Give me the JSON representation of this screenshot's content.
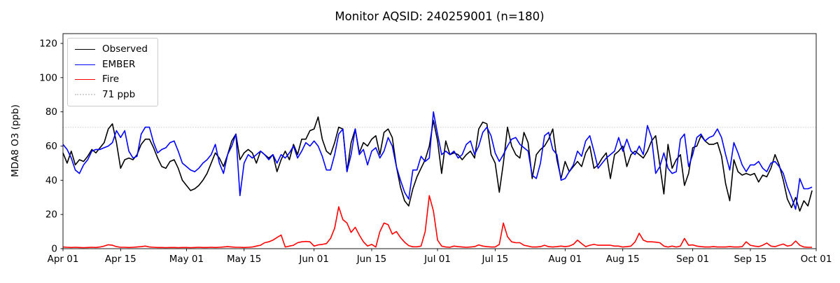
{
  "figure": {
    "title": "Monitor AQSID: 240259001 (n=180)"
  },
  "chart_data": {
    "type": "line",
    "title": "Monitor AQSID: 240259001 (n=180)",
    "xlabel": "",
    "ylabel": "MDA8 O3 (ppb)",
    "x_unit": "days since Apr 01",
    "xlim": [
      0,
      183
    ],
    "ylim": [
      0,
      125.5
    ],
    "grid": false,
    "x_tick_positions": [
      0,
      14,
      30,
      44,
      61,
      75,
      91,
      105,
      122,
      136,
      153,
      167,
      183
    ],
    "x_tick_labels": [
      "Apr 01",
      "Apr 15",
      "May 01",
      "May 15",
      "Jun 01",
      "Jun 15",
      "Jul 01",
      "Jul 15",
      "Aug 01",
      "Aug 15",
      "Sep 01",
      "Sep 15",
      "Oct 01"
    ],
    "y_ticks": [
      0,
      20,
      40,
      60,
      80,
      100,
      120
    ],
    "reference_line": {
      "value": 71,
      "label": "71 ppb",
      "color": "#d3d3d3",
      "style": "dotted"
    },
    "legend": {
      "position": "upper-left",
      "items": [
        {
          "label": "Observed",
          "color": "#000000",
          "style": "solid"
        },
        {
          "label": "EMBER",
          "color": "#0000ff",
          "style": "solid"
        },
        {
          "label": "Fire",
          "color": "#ff0000",
          "style": "solid"
        },
        {
          "label": "71 ppb",
          "color": "#d3d3d3",
          "style": "dotted"
        }
      ]
    },
    "series": [
      {
        "name": "Observed",
        "color": "#000000",
        "values": [
          56,
          50,
          57,
          49,
          52,
          51,
          54,
          58,
          56,
          59,
          62,
          70,
          73,
          62,
          47,
          52,
          53,
          52,
          55,
          61,
          64,
          64,
          59,
          53,
          48,
          47,
          51,
          52,
          47,
          40,
          37,
          34,
          35,
          37,
          40,
          44,
          50,
          56,
          53,
          48,
          55,
          63,
          67,
          52,
          56,
          58,
          56,
          50,
          57,
          55,
          53,
          55,
          45,
          52,
          57,
          52,
          61,
          55,
          64,
          64,
          69,
          70,
          77,
          64,
          57,
          55,
          62,
          71,
          70,
          45,
          62,
          70,
          56,
          62,
          60,
          64,
          66,
          55,
          68,
          70,
          65,
          48,
          36,
          28,
          25,
          35,
          42,
          47,
          52,
          60,
          75,
          63,
          44,
          63,
          55,
          56,
          55,
          52,
          55,
          57,
          53,
          70,
          74,
          73,
          55,
          50,
          33,
          50,
          71,
          60,
          55,
          53,
          68,
          62,
          41,
          55,
          58,
          60,
          64,
          70,
          52,
          41,
          51,
          45,
          48,
          51,
          48,
          56,
          60,
          47,
          49,
          53,
          56,
          41,
          55,
          57,
          60,
          48,
          55,
          57,
          55,
          53,
          57,
          63,
          66,
          49,
          32,
          61,
          47,
          52,
          55,
          37,
          44,
          59,
          60,
          66,
          63,
          61,
          61,
          62,
          54,
          38,
          28,
          52,
          45,
          43,
          44,
          43,
          44,
          39,
          43,
          42,
          47,
          55,
          49,
          40,
          29,
          24,
          30,
          22,
          28,
          25,
          34
        ]
      },
      {
        "name": "EMBER",
        "color": "#0000ff",
        "values": [
          61,
          58,
          53,
          46,
          44,
          49,
          52,
          57,
          58,
          58,
          59,
          60,
          62,
          69,
          65,
          69,
          57,
          53,
          54,
          67,
          71,
          71,
          62,
          56,
          58,
          59,
          62,
          63,
          57,
          50,
          48,
          46,
          45,
          47,
          50,
          52,
          55,
          61,
          50,
          44,
          55,
          60,
          67,
          31,
          50,
          55,
          53,
          55,
          57,
          55,
          52,
          55,
          50,
          55,
          53,
          56,
          60,
          53,
          57,
          62,
          60,
          63,
          60,
          54,
          46,
          46,
          55,
          67,
          70,
          45,
          55,
          70,
          55,
          58,
          49,
          57,
          59,
          53,
          57,
          65,
          60,
          48,
          40,
          33,
          29,
          46,
          46,
          54,
          51,
          53,
          80,
          67,
          55,
          57,
          55,
          57,
          53,
          55,
          61,
          63,
          55,
          60,
          68,
          71,
          66,
          56,
          51,
          55,
          60,
          64,
          65,
          61,
          59,
          57,
          43,
          41,
          50,
          66,
          68,
          58,
          55,
          40,
          41,
          45,
          49,
          57,
          54,
          63,
          66,
          57,
          47,
          50,
          53,
          55,
          57,
          65,
          57,
          64,
          57,
          55,
          60,
          55,
          72,
          65,
          44,
          48,
          56,
          47,
          44,
          45,
          64,
          67,
          48,
          55,
          65,
          67,
          63,
          65,
          66,
          70,
          65,
          55,
          46,
          62,
          56,
          49,
          45,
          49,
          49,
          51,
          47,
          45,
          50,
          51,
          48,
          44,
          36,
          30,
          23,
          41,
          35,
          35,
          36
        ]
      },
      {
        "name": "Fire",
        "color": "#ff0000",
        "values": [
          1,
          0.8,
          0.7,
          0.8,
          0.7,
          0.6,
          0.7,
          0.8,
          0.7,
          1,
          1.5,
          2.3,
          2,
          1.2,
          0.8,
          0.8,
          0.7,
          0.8,
          1,
          1.2,
          1.5,
          1,
          0.8,
          0.7,
          0.7,
          0.6,
          0.7,
          0.7,
          0.6,
          0.7,
          0.7,
          0.6,
          0.7,
          0.8,
          0.7,
          0.7,
          0.8,
          0.7,
          0.8,
          1,
          1.2,
          1,
          0.8,
          0.8,
          0.7,
          0.8,
          1,
          1.5,
          2,
          3.5,
          4,
          5,
          6.5,
          8,
          1,
          1.5,
          2,
          3.5,
          4,
          4.2,
          4,
          1.5,
          2.2,
          2.5,
          3,
          6,
          12,
          24.5,
          17,
          15,
          9.5,
          12.5,
          8,
          4,
          1.5,
          2.5,
          1,
          10,
          15,
          14,
          8.5,
          10,
          6.5,
          3.8,
          1.8,
          1.1,
          1.1,
          1.5,
          10,
          31,
          22,
          5,
          1.5,
          1,
          0.8,
          1.5,
          1.2,
          1,
          0.8,
          1,
          1.2,
          2.2,
          1.5,
          1.2,
          1,
          1,
          2.5,
          15,
          7,
          4,
          3.5,
          3.5,
          2,
          1.5,
          1,
          1,
          1.2,
          2,
          1.2,
          1,
          1.2,
          1.5,
          1.2,
          1.5,
          2.5,
          5,
          3,
          1.2,
          2,
          2.5,
          2,
          2,
          2,
          2,
          1.5,
          1.5,
          1,
          1.2,
          1.5,
          4,
          9,
          5,
          4,
          4,
          3.8,
          3.5,
          1.5,
          1,
          1.5,
          1,
          1.5,
          6,
          2,
          2.2,
          1.5,
          1.2,
          1,
          1,
          1.2,
          1,
          1,
          1,
          1.2,
          1,
          1,
          1.2,
          4,
          2,
          1.5,
          1.2,
          2,
          3.3,
          1.5,
          1.2,
          2,
          2.7,
          1.5,
          2,
          4.5,
          2,
          1,
          0.8,
          0.8
        ]
      }
    ]
  }
}
